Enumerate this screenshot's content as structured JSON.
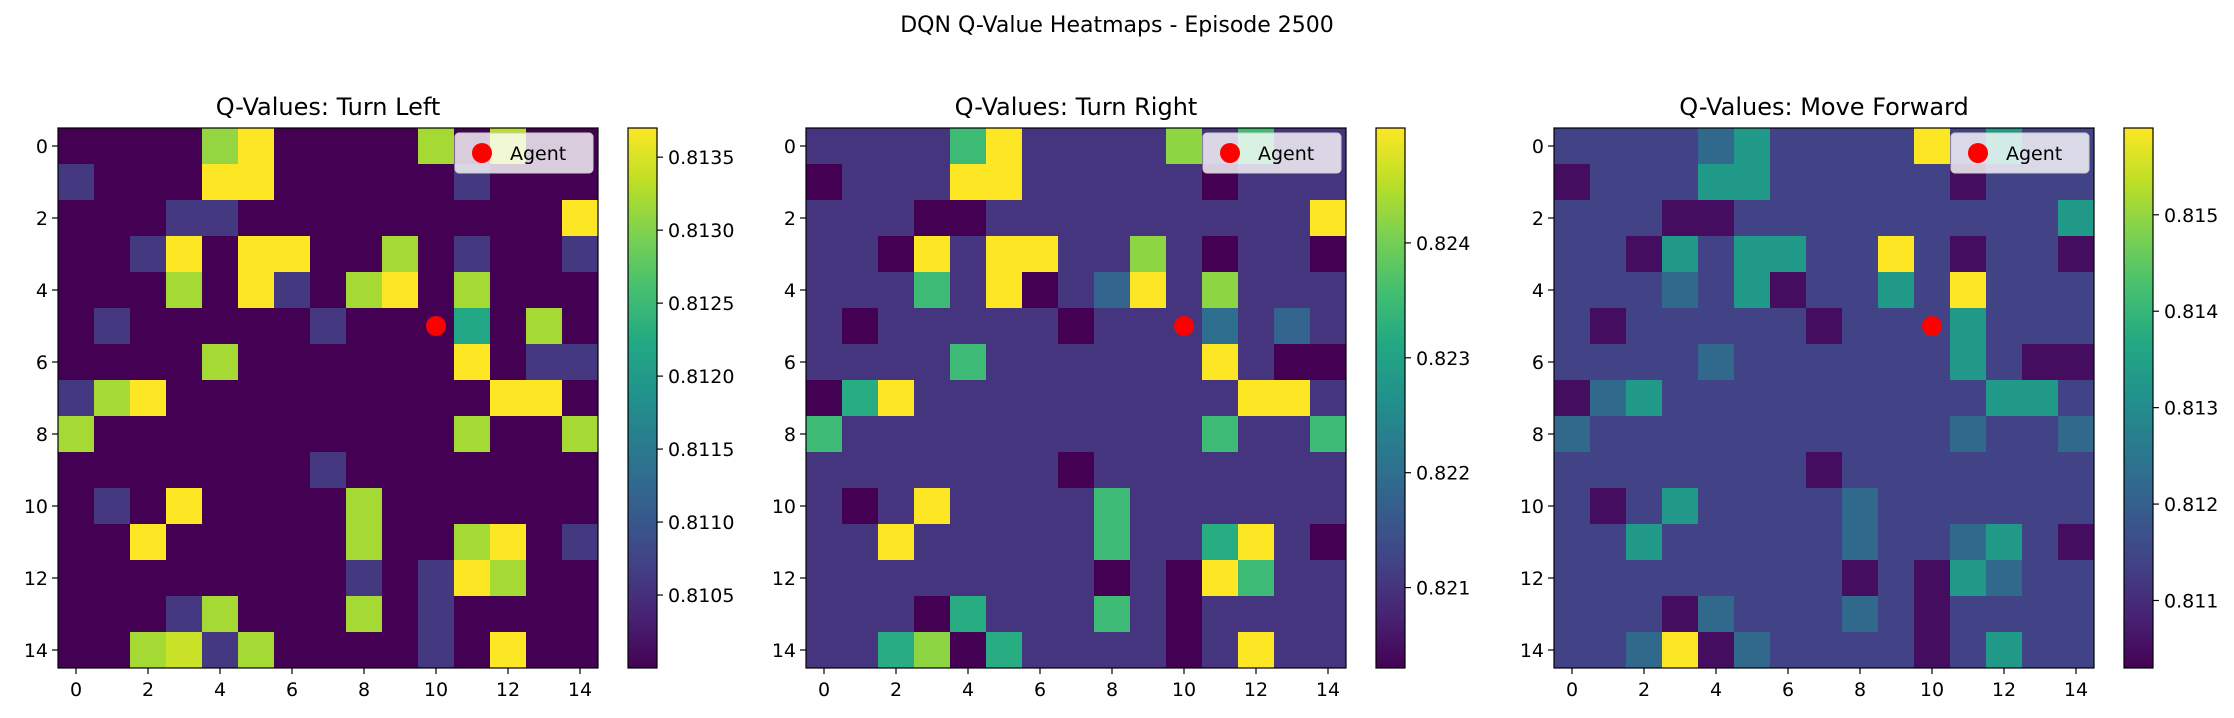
{
  "figure": {
    "suptitle": "DQN Q-Value Heatmaps - Episode 2500"
  },
  "chart_data": [
    {
      "type": "heatmap",
      "title": "Q-Values: Turn Left",
      "colormap": "viridis",
      "xticks": [
        "0",
        "2",
        "4",
        "6",
        "8",
        "10",
        "12",
        "14"
      ],
      "yticks": [
        "0",
        "2",
        "4",
        "6",
        "8",
        "10",
        "12",
        "14"
      ],
      "colorbar": {
        "min": 0.81,
        "max": 0.8137,
        "ticks": [
          {
            "value": 0.8105,
            "label": "0.8105"
          },
          {
            "value": 0.811,
            "label": "0.8110"
          },
          {
            "value": 0.8115,
            "label": "0.8115"
          },
          {
            "value": 0.812,
            "label": "0.8120"
          },
          {
            "value": 0.8125,
            "label": "0.8125"
          },
          {
            "value": 0.813,
            "label": "0.8130"
          },
          {
            "value": 0.8135,
            "label": "0.8135"
          }
        ]
      },
      "agent": {
        "x": 10,
        "y": 5,
        "color": "#ff0000",
        "label": "Agent"
      },
      "values": [
        [
          0.81,
          0.81,
          0.81,
          0.81,
          0.8131,
          0.8137,
          0.81,
          0.81,
          0.81,
          0.81,
          0.8132,
          0.81,
          0.8133,
          0.81,
          0.81
        ],
        [
          0.8106,
          0.81,
          0.81,
          0.81,
          0.8137,
          0.8137,
          0.81,
          0.81,
          0.81,
          0.81,
          0.81,
          0.8106,
          0.81,
          0.81,
          0.81
        ],
        [
          0.81,
          0.81,
          0.81,
          0.8106,
          0.8106,
          0.81,
          0.81,
          0.81,
          0.81,
          0.81,
          0.81,
          0.81,
          0.81,
          0.81,
          0.8137
        ],
        [
          0.81,
          0.81,
          0.8106,
          0.8137,
          0.81,
          0.8137,
          0.8137,
          0.81,
          0.81,
          0.8132,
          0.81,
          0.8106,
          0.81,
          0.81,
          0.8106
        ],
        [
          0.81,
          0.81,
          0.81,
          0.8132,
          0.81,
          0.8137,
          0.8106,
          0.81,
          0.8132,
          0.8137,
          0.81,
          0.8132,
          0.81,
          0.81,
          0.81
        ],
        [
          0.81,
          0.8106,
          0.81,
          0.81,
          0.81,
          0.81,
          0.81,
          0.8106,
          0.81,
          0.81,
          0.81,
          0.8122,
          0.81,
          0.8132,
          0.81
        ],
        [
          0.81,
          0.81,
          0.81,
          0.81,
          0.8132,
          0.81,
          0.81,
          0.81,
          0.81,
          0.81,
          0.81,
          0.8137,
          0.81,
          0.8106,
          0.8106
        ],
        [
          0.8106,
          0.8132,
          0.8137,
          0.81,
          0.81,
          0.81,
          0.81,
          0.81,
          0.81,
          0.81,
          0.81,
          0.81,
          0.8137,
          0.8137,
          0.81
        ],
        [
          0.8132,
          0.81,
          0.81,
          0.81,
          0.81,
          0.81,
          0.81,
          0.81,
          0.81,
          0.81,
          0.81,
          0.8132,
          0.81,
          0.81,
          0.8132
        ],
        [
          0.81,
          0.81,
          0.81,
          0.81,
          0.81,
          0.81,
          0.81,
          0.8106,
          0.81,
          0.81,
          0.81,
          0.81,
          0.81,
          0.81,
          0.81
        ],
        [
          0.81,
          0.8106,
          0.81,
          0.8137,
          0.81,
          0.81,
          0.81,
          0.81,
          0.8132,
          0.81,
          0.81,
          0.81,
          0.81,
          0.81,
          0.81
        ],
        [
          0.81,
          0.81,
          0.8137,
          0.81,
          0.81,
          0.81,
          0.81,
          0.81,
          0.8132,
          0.81,
          0.81,
          0.8132,
          0.8137,
          0.81,
          0.8106
        ],
        [
          0.81,
          0.81,
          0.81,
          0.81,
          0.81,
          0.81,
          0.81,
          0.81,
          0.8106,
          0.81,
          0.8106,
          0.8137,
          0.8132,
          0.81,
          0.81
        ],
        [
          0.81,
          0.81,
          0.81,
          0.8106,
          0.8132,
          0.81,
          0.81,
          0.81,
          0.8132,
          0.81,
          0.8106,
          0.81,
          0.81,
          0.81,
          0.81
        ],
        [
          0.81,
          0.81,
          0.8132,
          0.8134,
          0.8106,
          0.8132,
          0.81,
          0.81,
          0.81,
          0.81,
          0.8106,
          0.81,
          0.8137,
          0.81,
          0.81
        ]
      ]
    },
    {
      "type": "heatmap",
      "title": "Q-Values: Turn Right",
      "colormap": "viridis",
      "xticks": [
        "0",
        "2",
        "4",
        "6",
        "8",
        "10",
        "12",
        "14"
      ],
      "yticks": [
        "0",
        "2",
        "4",
        "6",
        "8",
        "10",
        "12",
        "14"
      ],
      "colorbar": {
        "min": 0.8203,
        "max": 0.825,
        "ticks": [
          {
            "value": 0.821,
            "label": "0.821"
          },
          {
            "value": 0.822,
            "label": "0.822"
          },
          {
            "value": 0.823,
            "label": "0.823"
          },
          {
            "value": 0.824,
            "label": "0.824"
          }
        ]
      },
      "agent": {
        "x": 10,
        "y": 5,
        "color": "#ff0000",
        "label": "Agent"
      },
      "values": [
        [
          0.821,
          0.821,
          0.821,
          0.821,
          0.8235,
          0.825,
          0.821,
          0.821,
          0.821,
          0.821,
          0.8242,
          0.821,
          0.8235,
          0.821,
          0.821
        ],
        [
          0.8203,
          0.821,
          0.821,
          0.821,
          0.825,
          0.825,
          0.821,
          0.821,
          0.821,
          0.821,
          0.821,
          0.8203,
          0.821,
          0.821,
          0.821
        ],
        [
          0.821,
          0.821,
          0.821,
          0.8203,
          0.8203,
          0.821,
          0.821,
          0.821,
          0.821,
          0.821,
          0.821,
          0.821,
          0.821,
          0.821,
          0.825
        ],
        [
          0.821,
          0.821,
          0.8203,
          0.825,
          0.821,
          0.825,
          0.825,
          0.821,
          0.821,
          0.8242,
          0.821,
          0.8203,
          0.821,
          0.821,
          0.8203
        ],
        [
          0.821,
          0.821,
          0.821,
          0.8235,
          0.821,
          0.825,
          0.8203,
          0.821,
          0.8218,
          0.825,
          0.821,
          0.8242,
          0.821,
          0.821,
          0.821
        ],
        [
          0.821,
          0.8203,
          0.821,
          0.821,
          0.821,
          0.821,
          0.821,
          0.8203,
          0.821,
          0.821,
          0.821,
          0.822,
          0.821,
          0.8218,
          0.821
        ],
        [
          0.821,
          0.821,
          0.821,
          0.821,
          0.8235,
          0.821,
          0.821,
          0.821,
          0.821,
          0.821,
          0.821,
          0.825,
          0.821,
          0.8203,
          0.8203
        ],
        [
          0.8203,
          0.8232,
          0.825,
          0.821,
          0.821,
          0.821,
          0.821,
          0.821,
          0.821,
          0.821,
          0.821,
          0.821,
          0.825,
          0.825,
          0.821
        ],
        [
          0.8235,
          0.821,
          0.821,
          0.821,
          0.821,
          0.821,
          0.821,
          0.821,
          0.821,
          0.821,
          0.821,
          0.8235,
          0.821,
          0.821,
          0.8235
        ],
        [
          0.821,
          0.821,
          0.821,
          0.821,
          0.821,
          0.821,
          0.821,
          0.8203,
          0.821,
          0.821,
          0.821,
          0.821,
          0.821,
          0.821,
          0.821
        ],
        [
          0.821,
          0.8203,
          0.821,
          0.825,
          0.821,
          0.821,
          0.821,
          0.821,
          0.8235,
          0.821,
          0.821,
          0.821,
          0.821,
          0.821,
          0.821
        ],
        [
          0.821,
          0.821,
          0.825,
          0.821,
          0.821,
          0.821,
          0.821,
          0.821,
          0.8235,
          0.821,
          0.821,
          0.8232,
          0.825,
          0.821,
          0.8203
        ],
        [
          0.821,
          0.821,
          0.821,
          0.821,
          0.821,
          0.821,
          0.821,
          0.821,
          0.8203,
          0.821,
          0.8203,
          0.825,
          0.8235,
          0.821,
          0.821
        ],
        [
          0.821,
          0.821,
          0.821,
          0.8203,
          0.8232,
          0.821,
          0.821,
          0.821,
          0.8235,
          0.821,
          0.8203,
          0.821,
          0.821,
          0.821,
          0.821
        ],
        [
          0.821,
          0.821,
          0.8232,
          0.8242,
          0.8203,
          0.8232,
          0.821,
          0.821,
          0.821,
          0.821,
          0.8203,
          0.821,
          0.825,
          0.821,
          0.821
        ]
      ]
    },
    {
      "type": "heatmap",
      "title": "Q-Values: Move Forward",
      "colormap": "viridis",
      "xticks": [
        "0",
        "2",
        "4",
        "6",
        "8",
        "10",
        "12",
        "14"
      ],
      "yticks": [
        "0",
        "2",
        "4",
        "6",
        "8",
        "10",
        "12",
        "14"
      ],
      "colorbar": {
        "min": 0.8103,
        "max": 0.8159,
        "ticks": [
          {
            "value": 0.811,
            "label": "0.811"
          },
          {
            "value": 0.812,
            "label": "0.812"
          },
          {
            "value": 0.813,
            "label": "0.813"
          },
          {
            "value": 0.814,
            "label": "0.814"
          },
          {
            "value": 0.815,
            "label": "0.815"
          }
        ]
      },
      "agent": {
        "x": 10,
        "y": 5,
        "color": "#ff0000",
        "label": "Agent"
      },
      "values": [
        [
          0.8114,
          0.8114,
          0.8114,
          0.8114,
          0.8122,
          0.8133,
          0.8114,
          0.8114,
          0.8114,
          0.8114,
          0.8159,
          0.8114,
          0.8133,
          0.8114,
          0.8114
        ],
        [
          0.8105,
          0.8114,
          0.8114,
          0.8114,
          0.8133,
          0.8133,
          0.8114,
          0.8114,
          0.8114,
          0.8114,
          0.8114,
          0.8105,
          0.8114,
          0.8114,
          0.8114
        ],
        [
          0.8114,
          0.8114,
          0.8114,
          0.8105,
          0.8105,
          0.8114,
          0.8114,
          0.8114,
          0.8114,
          0.8114,
          0.8114,
          0.8114,
          0.8114,
          0.8114,
          0.8133
        ],
        [
          0.8114,
          0.8114,
          0.8105,
          0.8133,
          0.8114,
          0.8133,
          0.8133,
          0.8114,
          0.8114,
          0.8159,
          0.8114,
          0.8105,
          0.8114,
          0.8114,
          0.8105
        ],
        [
          0.8114,
          0.8114,
          0.8114,
          0.8122,
          0.8114,
          0.8133,
          0.8105,
          0.8114,
          0.8114,
          0.8133,
          0.8114,
          0.8159,
          0.8114,
          0.8114,
          0.8114
        ],
        [
          0.8114,
          0.8105,
          0.8114,
          0.8114,
          0.8114,
          0.8114,
          0.8114,
          0.8105,
          0.8114,
          0.8114,
          0.8114,
          0.8133,
          0.8114,
          0.8114,
          0.8114
        ],
        [
          0.8114,
          0.8114,
          0.8114,
          0.8114,
          0.8122,
          0.8114,
          0.8114,
          0.8114,
          0.8114,
          0.8114,
          0.8114,
          0.8133,
          0.8114,
          0.8105,
          0.8105
        ],
        [
          0.8105,
          0.8122,
          0.8133,
          0.8114,
          0.8114,
          0.8114,
          0.8114,
          0.8114,
          0.8114,
          0.8114,
          0.8114,
          0.8114,
          0.8133,
          0.8133,
          0.8114
        ],
        [
          0.8122,
          0.8114,
          0.8114,
          0.8114,
          0.8114,
          0.8114,
          0.8114,
          0.8114,
          0.8114,
          0.8114,
          0.8114,
          0.8122,
          0.8114,
          0.8114,
          0.8122
        ],
        [
          0.8114,
          0.8114,
          0.8114,
          0.8114,
          0.8114,
          0.8114,
          0.8114,
          0.8105,
          0.8114,
          0.8114,
          0.8114,
          0.8114,
          0.8114,
          0.8114,
          0.8114
        ],
        [
          0.8114,
          0.8105,
          0.8114,
          0.8133,
          0.8114,
          0.8114,
          0.8114,
          0.8114,
          0.8122,
          0.8114,
          0.8114,
          0.8114,
          0.8114,
          0.8114,
          0.8114
        ],
        [
          0.8114,
          0.8114,
          0.8133,
          0.8114,
          0.8114,
          0.8114,
          0.8114,
          0.8114,
          0.8122,
          0.8114,
          0.8114,
          0.8122,
          0.8133,
          0.8114,
          0.8105
        ],
        [
          0.8114,
          0.8114,
          0.8114,
          0.8114,
          0.8114,
          0.8114,
          0.8114,
          0.8114,
          0.8105,
          0.8114,
          0.8105,
          0.8133,
          0.8122,
          0.8114,
          0.8114
        ],
        [
          0.8114,
          0.8114,
          0.8114,
          0.8105,
          0.8122,
          0.8114,
          0.8114,
          0.8114,
          0.8122,
          0.8114,
          0.8105,
          0.8114,
          0.8114,
          0.8114,
          0.8114
        ],
        [
          0.8114,
          0.8114,
          0.8122,
          0.8159,
          0.8105,
          0.8122,
          0.8114,
          0.8114,
          0.8114,
          0.8114,
          0.8105,
          0.8114,
          0.8133,
          0.8114,
          0.8114
        ]
      ]
    }
  ]
}
